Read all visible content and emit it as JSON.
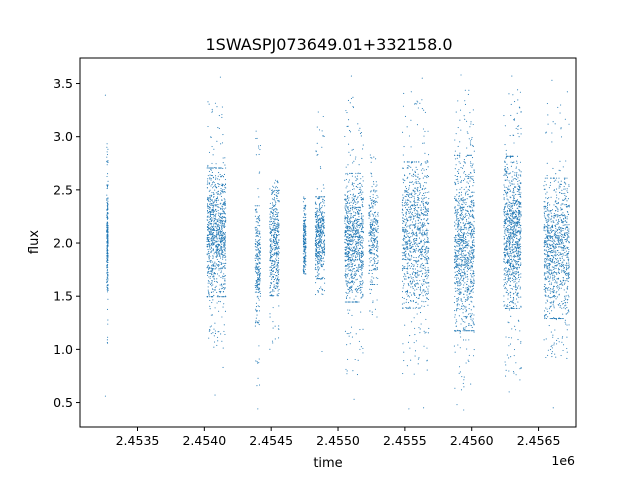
{
  "chart_data": {
    "type": "scatter",
    "title": "1SWASPJ073649.01+332158.0",
    "xlabel": "time",
    "ylabel": "flux",
    "x_offset_label": "1e6",
    "x_scale": 1000000,
    "xlim": [
      2.45307,
      2.45678
    ],
    "ylim": [
      0.27,
      3.74
    ],
    "xticks": [
      2.4535,
      2.454,
      2.4545,
      2.455,
      2.4555,
      2.456,
      2.4565
    ],
    "xtick_labels": [
      "2.4535",
      "2.4540",
      "2.4545",
      "2.4550",
      "2.4555",
      "2.4560",
      "2.4565"
    ],
    "yticks": [
      0.5,
      1.0,
      1.5,
      2.0,
      2.5,
      3.0,
      3.5
    ],
    "ytick_labels": [
      "0.5",
      "1.0",
      "1.5",
      "2.0",
      "2.5",
      "3.0",
      "3.5"
    ],
    "grid": false,
    "marker_color": "#1f77b4",
    "series": [
      {
        "segments": [
          {
            "x": [
              2.45327,
              2.45328
            ],
            "y_center": 2.0,
            "y_core": [
              1.6,
              2.5
            ],
            "y_extreme": [
              1.05,
              2.95
            ],
            "outliers": [
              [
                2.45326,
                3.39
              ],
              [
                2.45326,
                0.56
              ]
            ],
            "density": 0.25
          },
          {
            "x": [
              2.45402,
              2.45416
            ],
            "y_center": 2.05,
            "y_core": [
              1.55,
              2.65
            ],
            "y_extreme": [
              1.0,
              3.35
            ],
            "outliers": [
              [
                2.45412,
                3.56
              ],
              [
                2.45408,
                0.57
              ],
              [
                2.45414,
                0.83
              ]
            ],
            "density": 1.0
          },
          {
            "x": [
              2.45438,
              2.45442
            ],
            "y_center": 2.0,
            "y_core": [
              1.3,
              2.3
            ],
            "y_extreme": [
              0.6,
              3.2
            ],
            "outliers": [
              [
                2.4544,
                0.44
              ]
            ],
            "density": 0.25
          },
          {
            "x": [
              2.45449,
              2.45456
            ],
            "y_center": 2.05,
            "y_core": [
              1.55,
              2.45
            ],
            "y_extreme": [
              1.0,
              2.6
            ],
            "outliers": [],
            "density": 0.45
          },
          {
            "x": [
              2.45474,
              2.45476
            ],
            "y_center": 2.0,
            "y_core": [
              1.75,
              2.3
            ],
            "y_extreme": [
              1.7,
              2.45
            ],
            "outliers": [],
            "density": 0.2
          },
          {
            "x": [
              2.45483,
              2.4549
            ],
            "y_center": 2.05,
            "y_core": [
              1.7,
              2.4
            ],
            "y_extreme": [
              1.5,
              3.35
            ],
            "outliers": [
              [
                2.45488,
                0.98
              ]
            ],
            "density": 0.45
          },
          {
            "x": [
              2.45505,
              2.45519
            ],
            "y_center": 2.05,
            "y_core": [
              1.5,
              2.6
            ],
            "y_extreme": [
              0.75,
              3.4
            ],
            "outliers": [
              [
                2.4551,
                3.57
              ],
              [
                2.45512,
                0.53
              ]
            ],
            "density": 0.9
          },
          {
            "x": [
              2.45523,
              2.4553
            ],
            "y_center": 2.05,
            "y_core": [
              1.65,
              2.45
            ],
            "y_extreme": [
              1.3,
              2.85
            ],
            "outliers": [],
            "density": 0.3
          },
          {
            "x": [
              2.45548,
              2.45568
            ],
            "y_center": 2.05,
            "y_core": [
              1.45,
              2.7
            ],
            "y_extreme": [
              0.75,
              3.45
            ],
            "outliers": [
              [
                2.45553,
                0.44
              ],
              [
                2.45563,
                3.55
              ],
              [
                2.45564,
                0.45
              ]
            ],
            "density": 1.0
          },
          {
            "x": [
              2.45587,
              2.45602
            ],
            "y_center": 2.05,
            "y_core": [
              1.25,
              2.75
            ],
            "y_extreme": [
              0.6,
              3.45
            ],
            "outliers": [
              [
                2.45592,
                3.58
              ],
              [
                2.45594,
                0.43
              ],
              [
                2.45589,
                0.48
              ]
            ],
            "density": 1.0
          },
          {
            "x": [
              2.45624,
              2.45637
            ],
            "y_center": 2.1,
            "y_core": [
              1.45,
              2.75
            ],
            "y_extreme": [
              0.7,
              3.45
            ],
            "outliers": [
              [
                2.4563,
                3.57
              ],
              [
                2.45628,
                0.6
              ]
            ],
            "density": 1.0
          },
          {
            "x": [
              2.45654,
              2.45673
            ],
            "y_center": 2.0,
            "y_core": [
              1.35,
              2.55
            ],
            "y_extreme": [
              0.9,
              3.45
            ],
            "outliers": [
              [
                2.4566,
                3.53
              ],
              [
                2.45661,
                0.45
              ]
            ],
            "density": 1.0
          }
        ]
      }
    ]
  }
}
